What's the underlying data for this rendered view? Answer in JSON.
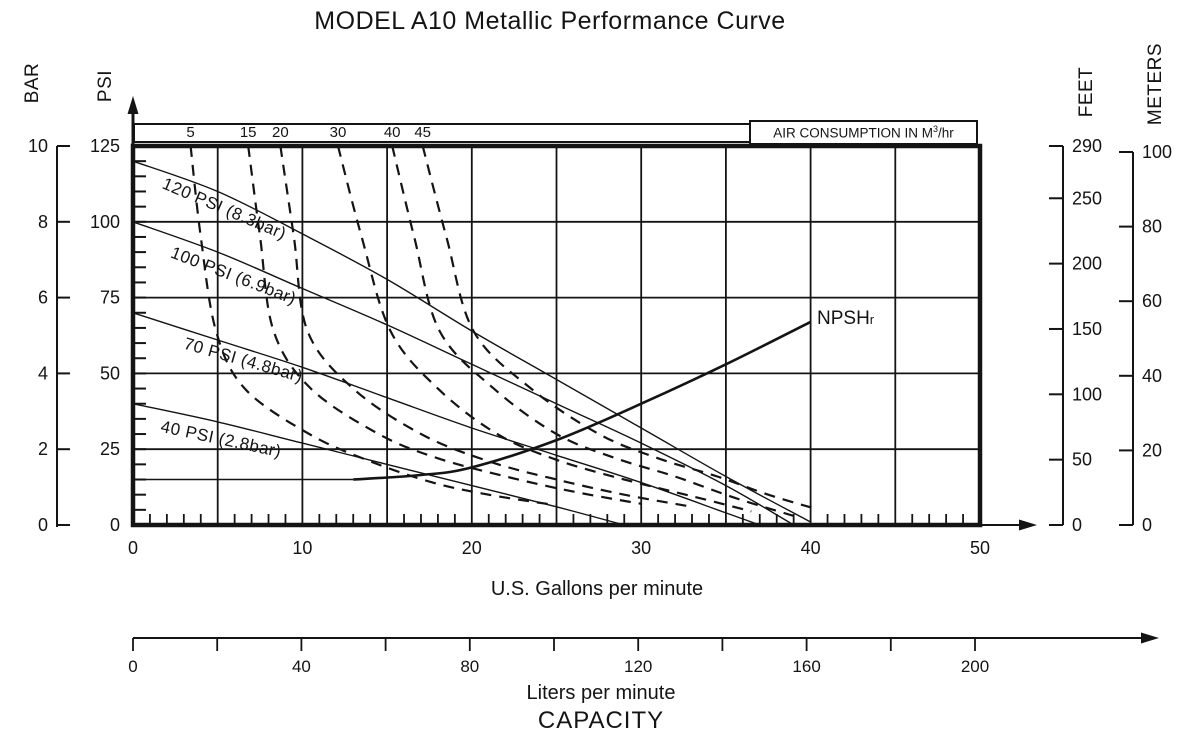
{
  "title": "MODEL A10 Metallic Performance Curve",
  "colors": {
    "ink": "#141414",
    "background": "#ffffff"
  },
  "axes": {
    "bar": {
      "name": "BAR",
      "tick_values": [
        0,
        2,
        4,
        6,
        8,
        10
      ],
      "min": 0,
      "max": 10
    },
    "psi": {
      "name": "PSI",
      "tick_values": [
        0,
        25,
        50,
        75,
        100,
        125
      ],
      "min": 0,
      "max": 125,
      "minor_step": 5
    },
    "feet": {
      "name": "FEET",
      "tick_values": [
        0,
        50,
        100,
        150,
        200,
        250,
        290
      ],
      "min": 0,
      "max": 290
    },
    "meters": {
      "name": "METERS",
      "tick_values": [
        0,
        20,
        40,
        60,
        80,
        100
      ],
      "min": 0,
      "max": 100
    },
    "gpm": {
      "title": "U.S. Gallons per minute",
      "tick_values": [
        0,
        10,
        20,
        30,
        40,
        50
      ],
      "min": 0,
      "max": 50,
      "grid_step": 5,
      "minor_step": 1
    },
    "lpm": {
      "title": "Liters per minute",
      "tick_values": [
        0,
        40,
        80,
        120,
        160,
        200
      ],
      "min": 0,
      "max": 200,
      "minor_step": 20
    },
    "capacity_title": "CAPACITY"
  },
  "air_band": {
    "label_main": "AIR CONSUMPTION IN M",
    "label_sup": "3",
    "label_tail": "/hr",
    "values": [
      "5",
      "15",
      "20",
      "30",
      "40",
      "45"
    ],
    "positions_gpm": [
      3.4,
      6.8,
      8.7,
      12.1,
      15.3,
      17.1
    ]
  },
  "npshr": {
    "main": "NPSH",
    "sub": "r"
  },
  "chart_data": {
    "type": "line",
    "title": "MODEL A10 Metallic Performance Curve",
    "xlabel": "U.S. Gallons per minute",
    "ylabel": "PSI",
    "xlim": [
      0,
      50
    ],
    "ylim": [
      0,
      125
    ],
    "grid": true,
    "series": [
      {
        "name": "120 PSI (8.3bar)",
        "style": "solid",
        "points": [
          [
            0,
            120
          ],
          [
            5,
            110
          ],
          [
            10,
            96
          ],
          [
            15,
            81
          ],
          [
            20,
            64
          ],
          [
            25,
            48
          ],
          [
            30,
            32
          ],
          [
            35,
            16
          ],
          [
            40,
            1
          ]
        ]
      },
      {
        "name": "100 PSI (6.9bar)",
        "style": "solid",
        "points": [
          [
            0,
            100
          ],
          [
            5,
            90
          ],
          [
            10,
            78
          ],
          [
            15,
            66
          ],
          [
            20,
            53
          ],
          [
            25,
            40
          ],
          [
            30,
            27
          ],
          [
            35,
            13
          ],
          [
            39,
            0
          ]
        ]
      },
      {
        "name": "70 PSI (4.8bar)",
        "style": "solid",
        "points": [
          [
            0,
            70
          ],
          [
            5,
            61
          ],
          [
            10,
            52
          ],
          [
            15,
            42
          ],
          [
            20,
            32
          ],
          [
            25,
            23
          ],
          [
            30,
            14
          ],
          [
            35,
            4
          ],
          [
            37,
            0
          ]
        ]
      },
      {
        "name": "40 PSI (2.8bar)",
        "style": "solid",
        "points": [
          [
            0,
            40
          ],
          [
            5,
            34
          ],
          [
            10,
            27
          ],
          [
            15,
            20
          ],
          [
            20,
            13
          ],
          [
            25,
            6
          ],
          [
            29,
            0
          ]
        ]
      },
      {
        "name": "NPSHr",
        "style": "npshr",
        "segments": [
          {
            "weight": "thin",
            "points": [
              [
                0,
                15
              ],
              [
                7,
                15
              ],
              [
                13,
                15
              ]
            ]
          },
          {
            "weight": "bold",
            "points": [
              [
                13,
                15
              ],
              [
                17,
                16.5
              ],
              [
                20,
                19
              ],
              [
                25,
                28
              ],
              [
                30,
                40
              ],
              [
                35,
                53
              ],
              [
                40,
                67
              ]
            ]
          }
        ]
      }
    ],
    "air_consumption_series": [
      {
        "value": "5",
        "points": [
          [
            3.4,
            125
          ],
          [
            4.0,
            95
          ],
          [
            4.9,
            64
          ],
          [
            6.6,
            45
          ],
          [
            10.4,
            30
          ],
          [
            14,
            21
          ],
          [
            17.7,
            14
          ],
          [
            21,
            10
          ],
          [
            25,
            6.5
          ]
        ]
      },
      {
        "value": "15",
        "points": [
          [
            6.8,
            125
          ],
          [
            7.5,
            95
          ],
          [
            8.3,
            64
          ],
          [
            10.5,
            45
          ],
          [
            14.5,
            30
          ],
          [
            18,
            22
          ],
          [
            22,
            16
          ],
          [
            26,
            11
          ],
          [
            30,
            7
          ]
        ]
      },
      {
        "value": "20",
        "points": [
          [
            8.7,
            125
          ],
          [
            9.5,
            95
          ],
          [
            10.3,
            64
          ],
          [
            13,
            45
          ],
          [
            17,
            30
          ],
          [
            21,
            21
          ],
          [
            25,
            15
          ],
          [
            29,
            10
          ],
          [
            33,
            6
          ]
        ]
      },
      {
        "value": "30",
        "points": [
          [
            12.1,
            125
          ],
          [
            13.5,
            95
          ],
          [
            15.2,
            64
          ],
          [
            18,
            45
          ],
          [
            21.5,
            30
          ],
          [
            25,
            21.5
          ],
          [
            29,
            15
          ],
          [
            33,
            9.5
          ],
          [
            36.5,
            4.5
          ]
        ]
      },
      {
        "value": "40",
        "points": [
          [
            15.3,
            125
          ],
          [
            16.6,
            95
          ],
          [
            18.1,
            64
          ],
          [
            21.3,
            45
          ],
          [
            25,
            30
          ],
          [
            28.5,
            22
          ],
          [
            32,
            16
          ],
          [
            35.5,
            9
          ],
          [
            39,
            3
          ]
        ]
      },
      {
        "value": "45",
        "points": [
          [
            17.1,
            125
          ],
          [
            18.5,
            95
          ],
          [
            20.1,
            64
          ],
          [
            23.5,
            45
          ],
          [
            27.5,
            30
          ],
          [
            31,
            22
          ],
          [
            34.5,
            16
          ],
          [
            37.5,
            10
          ],
          [
            40.5,
            5
          ]
        ]
      }
    ]
  }
}
